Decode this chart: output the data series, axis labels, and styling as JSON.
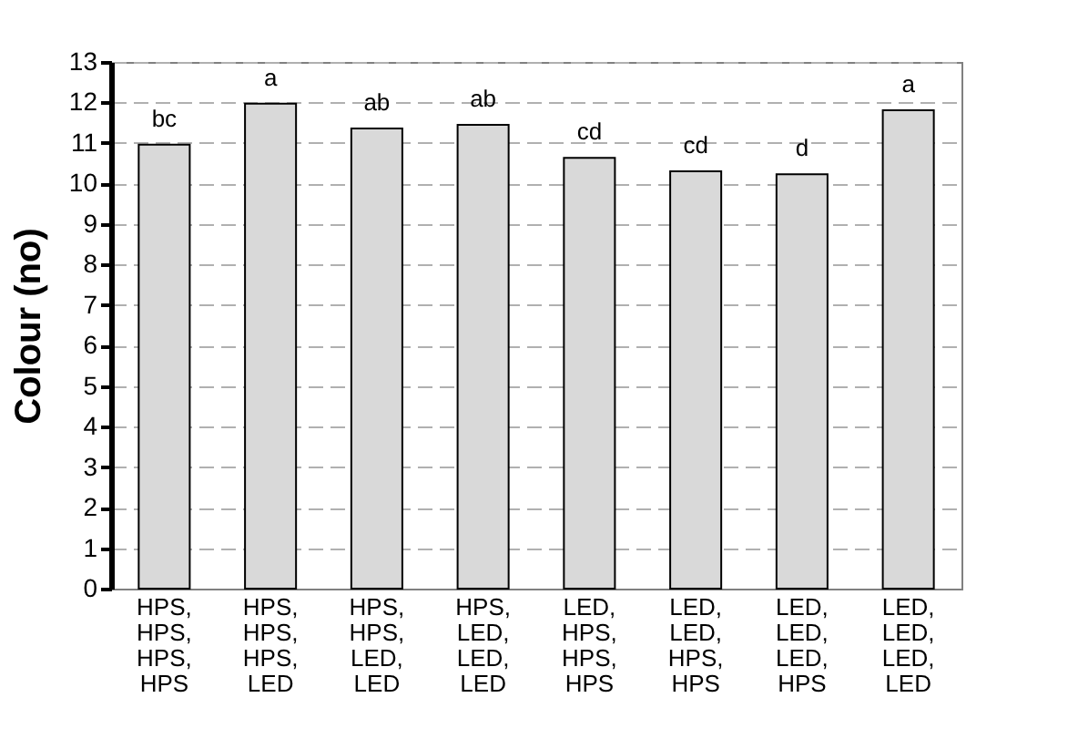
{
  "chart_data": {
    "type": "bar",
    "ylabel": "Colour (no)",
    "categories": [
      "HPS,\nHPS,\nHPS,\nHPS",
      "HPS,\nHPS,\nHPS,\nLED",
      "HPS,\nHPS,\nLED,\nLED",
      "HPS,\nLED,\nLED,\nLED",
      "LED,\nHPS,\nHPS,\nHPS",
      "LED,\nLED,\nHPS,\nHPS",
      "LED,\nLED,\nLED,\nHPS",
      "LED,\nLED,\nLED,\nLED"
    ],
    "values": [
      10.96,
      11.97,
      11.36,
      11.45,
      10.63,
      10.3,
      10.23,
      11.81
    ],
    "color": "#d9d9d9",
    "ylim": [
      0,
      13
    ],
    "yticks": [
      0,
      1,
      2,
      3,
      4,
      5,
      6,
      7,
      8,
      9,
      10,
      11,
      12,
      13
    ],
    "grid": "y",
    "annotations": [
      {
        "text": "bc",
        "x": "HPS,\nHPS,\nHPS,\nHPS",
        "y": 10.96
      },
      {
        "text": "a",
        "x": "HPS,\nHPS,\nHPS,\nLED",
        "y": 11.97
      },
      {
        "text": "ab",
        "x": "HPS,\nHPS,\nLED,\nLED",
        "y": 11.36
      },
      {
        "text": "ab",
        "x": "HPS,\nLED,\nLED,\nLED",
        "y": 11.45
      },
      {
        "text": "cd",
        "x": "LED,\nHPS,\nHPS,\nHPS",
        "y": 10.63
      },
      {
        "text": "cd",
        "x": "LED,\nLED,\nHPS,\nHPS",
        "y": 10.3
      },
      {
        "text": "d",
        "x": "LED,\nLED,\nLED,\nHPS",
        "y": 10.23
      },
      {
        "text": "a",
        "x": "LED,\nLED,\nLED,\nLED",
        "y": 11.81
      }
    ]
  }
}
